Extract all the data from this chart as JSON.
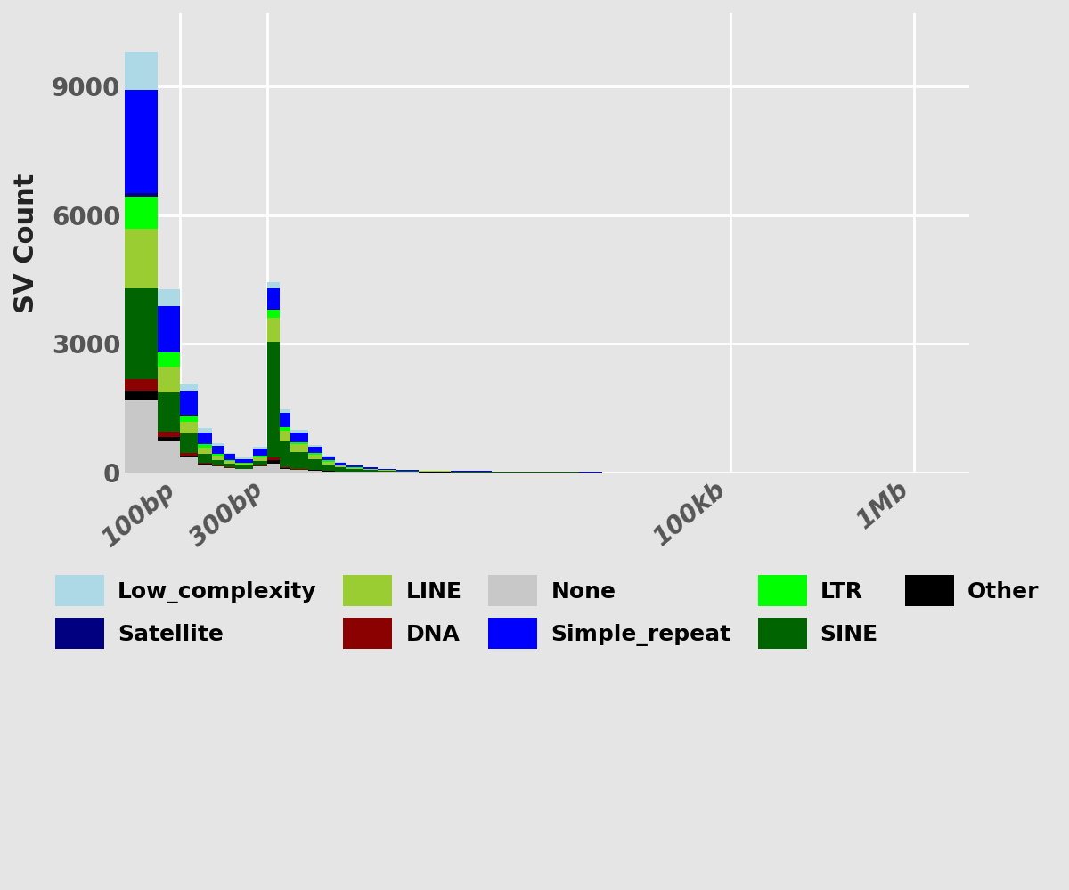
{
  "ylabel": "SV Count",
  "background_color": "#e5e5e5",
  "grid_color": "#ffffff",
  "legend_items": [
    {
      "label": "Low_complexity",
      "color": "#ADD8E6"
    },
    {
      "label": "Simple_repeat",
      "color": "#0000FF"
    },
    {
      "label": "Satellite",
      "color": "#000080"
    },
    {
      "label": "LTR",
      "color": "#00FF00"
    },
    {
      "label": "LINE",
      "color": "#9ACD32"
    },
    {
      "label": "SINE",
      "color": "#006400"
    },
    {
      "label": "DNA",
      "color": "#8B0000"
    },
    {
      "label": "Other",
      "color": "#000000"
    },
    {
      "label": "None",
      "color": "#C8C8C8"
    }
  ],
  "stack_order": [
    "None",
    "Other",
    "DNA",
    "SINE",
    "LINE",
    "LTR",
    "Satellite",
    "Simple_repeat",
    "Low_complexity"
  ],
  "bin_edges": [
    50,
    75,
    100,
    125,
    150,
    175,
    200,
    250,
    300,
    350,
    400,
    500,
    600,
    700,
    800,
    1000,
    1200,
    1500,
    2000,
    3000,
    5000,
    7500,
    10000,
    15000,
    20000,
    30000,
    50000,
    75000,
    100000,
    150000,
    200000,
    300000,
    500000,
    750000,
    1000000,
    1500000
  ],
  "data": {
    "None": [
      1700,
      750,
      350,
      180,
      130,
      90,
      70,
      130,
      200,
      80,
      50,
      35,
      20,
      12,
      8,
      6,
      4,
      4,
      3,
      2,
      1,
      1,
      1,
      0,
      0,
      0,
      0,
      0,
      0,
      0,
      0,
      0,
      0,
      0,
      0
    ],
    "Other": [
      200,
      80,
      40,
      18,
      12,
      8,
      6,
      10,
      80,
      20,
      15,
      10,
      6,
      4,
      3,
      2,
      2,
      1,
      1,
      1,
      0,
      0,
      0,
      0,
      0,
      0,
      0,
      0,
      0,
      0,
      0,
      0,
      0,
      0,
      0
    ],
    "DNA": [
      280,
      120,
      60,
      30,
      18,
      12,
      8,
      15,
      70,
      18,
      12,
      8,
      5,
      3,
      2,
      2,
      1,
      1,
      1,
      0,
      0,
      0,
      0,
      0,
      0,
      0,
      0,
      0,
      0,
      0,
      0,
      0,
      0,
      0,
      0
    ],
    "SINE": [
      2100,
      900,
      450,
      210,
      130,
      90,
      65,
      110,
      2700,
      600,
      400,
      250,
      150,
      90,
      60,
      45,
      30,
      20,
      15,
      10,
      6,
      4,
      3,
      2,
      1,
      1,
      1,
      0,
      0,
      0,
      0,
      0,
      0,
      0,
      0
    ],
    "LINE": [
      1400,
      620,
      280,
      140,
      90,
      60,
      45,
      80,
      550,
      250,
      170,
      110,
      70,
      45,
      30,
      22,
      15,
      10,
      8,
      5,
      3,
      2,
      2,
      1,
      1,
      1,
      0,
      0,
      0,
      0,
      0,
      0,
      0,
      0,
      0
    ],
    "LTR": [
      750,
      320,
      140,
      70,
      45,
      28,
      20,
      35,
      190,
      80,
      55,
      35,
      22,
      14,
      9,
      7,
      5,
      3,
      2,
      2,
      1,
      1,
      0,
      0,
      0,
      0,
      0,
      0,
      0,
      0,
      0,
      0,
      0,
      0,
      0
    ],
    "Satellite": [
      80,
      35,
      18,
      8,
      5,
      3,
      2,
      4,
      20,
      8,
      5,
      3,
      2,
      1,
      1,
      0,
      0,
      0,
      0,
      0,
      0,
      0,
      0,
      0,
      0,
      0,
      0,
      0,
      0,
      0,
      0,
      0,
      0,
      0,
      0
    ],
    "Simple_repeat": [
      2400,
      1050,
      560,
      280,
      185,
      130,
      95,
      170,
      480,
      320,
      220,
      140,
      85,
      55,
      36,
      26,
      18,
      12,
      9,
      6,
      4,
      2,
      2,
      1,
      1,
      1,
      0,
      0,
      1,
      0,
      0,
      0,
      0,
      0,
      1
    ],
    "Low_complexity": [
      900,
      400,
      180,
      90,
      55,
      36,
      25,
      46,
      150,
      80,
      55,
      35,
      22,
      14,
      9,
      7,
      5,
      3,
      2,
      1,
      1,
      1,
      0,
      0,
      0,
      0,
      0,
      0,
      1,
      0,
      0,
      0,
      0,
      0,
      0
    ]
  },
  "ylim": [
    0,
    10700
  ],
  "yticks": [
    0,
    3000,
    6000,
    9000
  ],
  "xtick_positions": [
    100,
    300,
    100000,
    1000000
  ],
  "xtick_labels": [
    "100bp",
    "300bp",
    "100kb",
    "1Mb"
  ],
  "axis_fontsize": 22,
  "tick_fontsize": 20,
  "legend_fontsize": 18
}
